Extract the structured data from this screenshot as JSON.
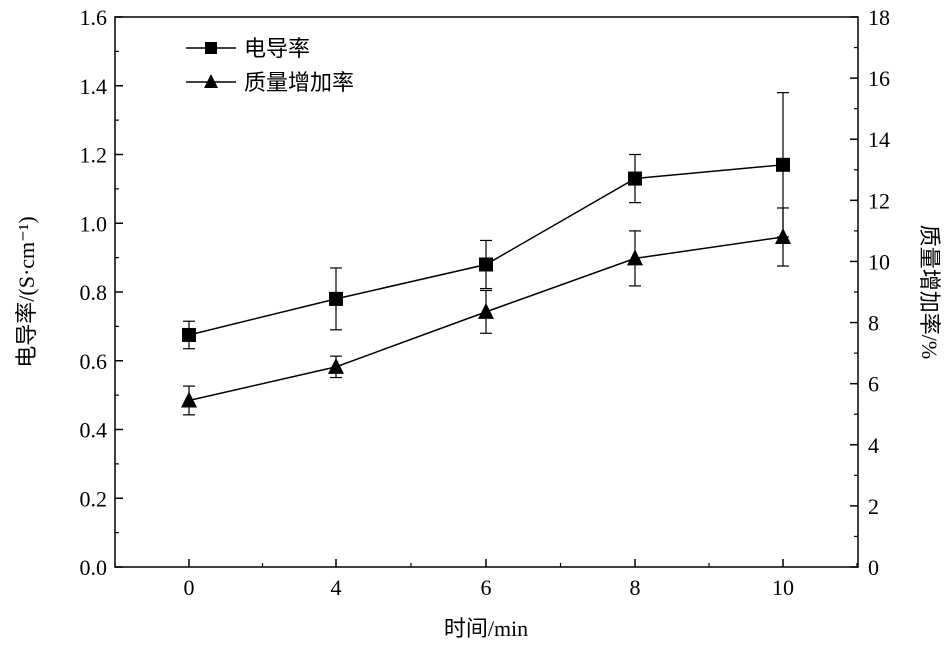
{
  "chart_data": {
    "type": "line",
    "title": "",
    "xlabel": "时间/min",
    "ylabel": "电导率/(S·cm⁻¹)",
    "ylabel2": "质量增加率/%",
    "categories": [
      "0",
      "4",
      "6",
      "8",
      "10"
    ],
    "ylim": [
      0,
      1.6
    ],
    "y2lim": [
      0,
      18
    ],
    "yticks": [
      "0.0",
      "0.2",
      "0.4",
      "0.6",
      "0.8",
      "1.0",
      "1.2",
      "1.4",
      "1.6"
    ],
    "y2ticks": [
      "0",
      "2",
      "4",
      "6",
      "8",
      "10",
      "12",
      "14",
      "16",
      "18"
    ],
    "legend_position": "top-left",
    "series": [
      {
        "name": "电导率",
        "axis": "left",
        "marker": "square",
        "values": [
          0.675,
          0.78,
          0.88,
          1.13,
          1.17
        ],
        "errors": [
          0.04,
          0.09,
          0.07,
          0.07,
          0.21
        ]
      },
      {
        "name": "质量增加率",
        "axis": "right",
        "marker": "triangle",
        "values": [
          5.45,
          6.55,
          8.35,
          10.1,
          10.8
        ],
        "errors": [
          0.47,
          0.35,
          0.7,
          0.9,
          0.95
        ]
      }
    ]
  }
}
